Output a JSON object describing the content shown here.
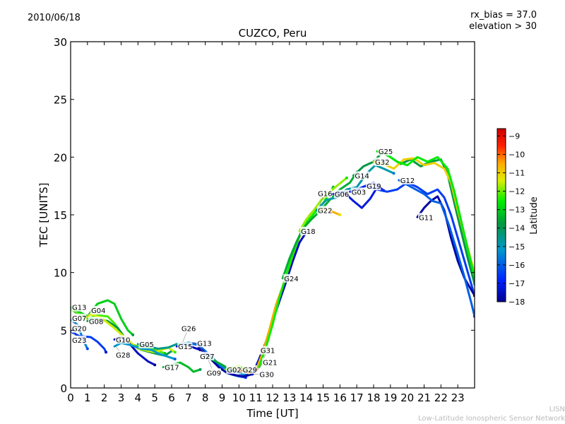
{
  "header": {
    "date": "2010/06/18",
    "rx_bias": "rx_bias = 37.0",
    "elevation": "elevation > 30"
  },
  "footer": {
    "short": "LISN",
    "long": "Low-Latitude Ionospheric Sensor Network"
  },
  "chart_data": {
    "type": "scatter",
    "title": "CUZCO, Peru",
    "xlabel": "Time [UT]",
    "ylabel": "TEC [UNITS]",
    "xlim": [
      0,
      24
    ],
    "ylim": [
      0,
      30
    ],
    "xticks": [
      "0",
      "1",
      "2",
      "3",
      "4",
      "5",
      "6",
      "7",
      "8",
      "9",
      "10",
      "11",
      "12",
      "13",
      "14",
      "15",
      "16",
      "17",
      "18",
      "19",
      "20",
      "21",
      "22",
      "23"
    ],
    "yticks": [
      "0",
      "5",
      "10",
      "15",
      "20",
      "25",
      "30"
    ],
    "colorbar": {
      "label": "Latitude",
      "range": [
        -18,
        -8.6
      ],
      "ticks": [
        "-9",
        "-10",
        "-11",
        "-12",
        "-13",
        "-14",
        "-15",
        "-16",
        "-17",
        "-18"
      ]
    },
    "series": [
      {
        "name": "G13",
        "lat": -13.0,
        "points": [
          [
            0,
            7.0
          ],
          [
            0.5,
            6.6
          ],
          [
            1,
            6.2
          ],
          [
            1.6,
            7.3
          ],
          [
            2.2,
            7.6
          ],
          [
            2.6,
            7.3
          ],
          [
            3.0,
            6.0
          ],
          [
            3.4,
            5.0
          ],
          [
            3.7,
            4.6
          ]
        ]
      },
      {
        "name": "G07",
        "lat": -12.2,
        "points": [
          [
            0,
            6.8
          ],
          [
            0.5,
            6.4
          ],
          [
            1,
            6.0
          ],
          [
            1.6,
            6.3
          ],
          [
            2.2,
            6.2
          ],
          [
            2.6,
            5.6
          ],
          [
            3.0,
            4.8
          ],
          [
            3.4,
            3.9
          ],
          [
            4,
            3.6
          ],
          [
            5,
            3.3
          ],
          [
            5.6,
            3.0
          ]
        ]
      },
      {
        "name": "G20",
        "lat": -15.5,
        "points": [
          [
            0,
            5.9
          ],
          [
            0.4,
            5.5
          ],
          [
            0.8,
            4.0
          ],
          [
            1.0,
            3.4
          ]
        ]
      },
      {
        "name": "G08",
        "lat": -13.8,
        "points": [
          [
            1,
            5.8
          ],
          [
            1.5,
            6.0
          ],
          [
            2.2,
            5.8
          ],
          [
            2.8,
            5.2
          ],
          [
            3.4,
            4.0
          ],
          [
            4.2,
            3.3
          ],
          [
            5,
            3.0
          ],
          [
            5.6,
            2.8
          ],
          [
            6.0,
            3.2
          ]
        ]
      },
      {
        "name": "G04",
        "lat": -11.5,
        "points": [
          [
            0.8,
            6.0
          ],
          [
            1.2,
            6.4
          ],
          [
            1.8,
            6.1
          ],
          [
            2.5,
            5.3
          ],
          [
            3.2,
            4.4
          ],
          [
            4,
            3.4
          ],
          [
            5,
            3.1
          ],
          [
            5.8,
            3.5
          ],
          [
            6.2,
            3.1
          ]
        ]
      },
      {
        "name": "G23",
        "lat": -16.5,
        "points": [
          [
            0,
            4.9
          ],
          [
            0.5,
            4.5
          ],
          [
            1.2,
            4.4
          ],
          [
            1.6,
            4.0
          ],
          [
            2.0,
            3.4
          ],
          [
            2.1,
            3.1
          ]
        ]
      },
      {
        "name": "G10",
        "lat": -17.5,
        "points": [
          [
            2.6,
            4.2
          ],
          [
            3.0,
            4.4
          ],
          [
            3.4,
            4.0
          ],
          [
            4.0,
            3.0
          ],
          [
            4.6,
            2.3
          ],
          [
            5,
            2.0
          ]
        ]
      },
      {
        "name": "G28",
        "lat": -15.2,
        "points": [
          [
            2.6,
            3.6
          ],
          [
            3.0,
            3.9
          ],
          [
            3.6,
            3.7
          ],
          [
            4.2,
            3.4
          ],
          [
            4.8,
            3.3
          ],
          [
            5.2,
            3.0
          ],
          [
            5.8,
            2.7
          ],
          [
            6.2,
            2.5
          ]
        ]
      },
      {
        "name": "G05",
        "lat": -14.5,
        "points": [
          [
            4.0,
            3.8
          ],
          [
            4.6,
            3.6
          ],
          [
            5.2,
            3.4
          ],
          [
            5.8,
            3.5
          ],
          [
            6.3,
            3.8
          ],
          [
            7,
            3.9
          ]
        ]
      },
      {
        "name": "G17",
        "lat": -13.3,
        "points": [
          [
            5.5,
            1.8
          ],
          [
            6,
            2.0
          ],
          [
            6.5,
            2.2
          ],
          [
            7,
            1.8
          ],
          [
            7.3,
            1.4
          ],
          [
            7.7,
            1.6
          ]
        ]
      },
      {
        "name": "G15",
        "lat": -17.5,
        "points": [
          [
            6.3,
            3.6
          ],
          [
            6.8,
            3.8
          ],
          [
            7.3,
            3.5
          ],
          [
            7.7,
            3.3
          ]
        ]
      },
      {
        "name": "G26",
        "lat": -15.5,
        "points": [
          [
            6.5,
            3.7
          ],
          [
            7,
            3.9
          ],
          [
            7.6,
            3.7
          ],
          [
            8,
            3.2
          ],
          [
            8.5,
            2.5
          ],
          [
            9,
            1.8
          ],
          [
            9.5,
            1.5
          ],
          [
            10,
            1.3
          ],
          [
            10.5,
            1.1
          ]
        ]
      },
      {
        "name": "G13b",
        "label": "G13",
        "lat": -16.0,
        "points": [
          [
            7.1,
            3.9
          ],
          [
            7.6,
            3.8
          ],
          [
            8,
            3.1
          ],
          [
            8.5,
            2.3
          ],
          [
            9,
            1.6
          ],
          [
            9.5,
            1.2
          ],
          [
            10,
            1.0
          ],
          [
            10.4,
            0.9
          ]
        ]
      },
      {
        "name": "G27",
        "lat": -17.8,
        "points": [
          [
            7.6,
            3.5
          ],
          [
            8.0,
            3.0
          ],
          [
            8.4,
            2.4
          ],
          [
            8.8,
            1.8
          ],
          [
            9.3,
            1.3
          ],
          [
            9.8,
            1.1
          ],
          [
            10.3,
            1.0
          ],
          [
            10.8,
            1.2
          ]
        ]
      },
      {
        "name": "G09",
        "lat": -13.5,
        "points": [
          [
            8.0,
            2.8
          ],
          [
            8.5,
            2.4
          ],
          [
            9,
            2.0
          ],
          [
            9.5,
            1.6
          ],
          [
            10,
            1.5
          ],
          [
            10.5,
            1.4
          ]
        ]
      },
      {
        "name": "G02",
        "lat": -12.0,
        "points": [
          [
            9.2,
            1.6
          ],
          [
            9.6,
            1.8
          ],
          [
            10,
            1.9
          ],
          [
            10.4,
            1.6
          ],
          [
            10.8,
            1.3
          ]
        ]
      },
      {
        "name": "G29",
        "lat": -10.0,
        "points": [
          [
            9.8,
            1.6
          ],
          [
            10.2,
            1.5
          ],
          [
            10.6,
            1.3
          ]
        ]
      },
      {
        "name": "G30",
        "lat": -17.5,
        "points": [
          [
            10.8,
            1.2
          ],
          [
            11.2,
            2.5
          ],
          [
            11.6,
            4.0
          ],
          [
            12,
            5.8
          ],
          [
            12.4,
            7.5
          ],
          [
            12.8,
            9.2
          ],
          [
            13.2,
            11.0
          ],
          [
            13.6,
            12.6
          ],
          [
            14,
            13.5
          ]
        ]
      },
      {
        "name": "G21",
        "lat": -10.5,
        "points": [
          [
            11.0,
            1.5
          ],
          [
            11.4,
            3.0
          ],
          [
            11.8,
            5.0
          ],
          [
            12.2,
            7.2
          ],
          [
            12.6,
            8.8
          ],
          [
            13,
            10.6
          ],
          [
            13.4,
            12.4
          ],
          [
            13.8,
            13.8
          ],
          [
            14.2,
            15.0
          ],
          [
            14.6,
            15.6
          ]
        ]
      },
      {
        "name": "G31",
        "lat": -12.5,
        "points": [
          [
            11.2,
            1.8
          ],
          [
            11.6,
            3.5
          ],
          [
            12,
            5.5
          ],
          [
            12.4,
            7.8
          ],
          [
            12.8,
            9.7
          ],
          [
            13.2,
            11.6
          ],
          [
            13.6,
            13.2
          ],
          [
            14,
            14.3
          ],
          [
            14.5,
            15.2
          ],
          [
            15,
            16.0
          ],
          [
            15.6,
            17.4
          ]
        ]
      },
      {
        "name": "G24",
        "lat": -13.5,
        "points": [
          [
            12.6,
            9.5
          ],
          [
            13,
            11.2
          ],
          [
            13.4,
            12.6
          ],
          [
            13.8,
            13.8
          ],
          [
            14.3,
            14.6
          ],
          [
            14.8,
            15.3
          ],
          [
            15.4,
            16.3
          ],
          [
            16,
            17.2
          ],
          [
            16.6,
            17.8
          ],
          [
            17,
            18.7
          ]
        ]
      },
      {
        "name": "G18",
        "lat": -11.8,
        "points": [
          [
            13.6,
            13.6
          ],
          [
            14,
            14.6
          ],
          [
            14.4,
            15.3
          ],
          [
            14.9,
            16.3
          ],
          [
            15.4,
            17.0
          ],
          [
            15.9,
            17.6
          ],
          [
            16.4,
            18.2
          ]
        ]
      },
      {
        "name": "G22",
        "lat": -10.5,
        "points": [
          [
            14.6,
            15.4
          ],
          [
            15,
            15.5
          ],
          [
            15.5,
            15.3
          ],
          [
            16,
            15.0
          ]
        ]
      },
      {
        "name": "G16",
        "lat": -14.8,
        "points": [
          [
            14.6,
            15.4
          ],
          [
            15.2,
            16.3
          ],
          [
            15.8,
            16.5
          ],
          [
            16.4,
            17.2
          ],
          [
            17,
            17.4
          ],
          [
            17.6,
            18.6
          ],
          [
            18.1,
            19.3
          ],
          [
            18.6,
            19.0
          ],
          [
            19.2,
            18.6
          ]
        ]
      },
      {
        "name": "G06",
        "lat": -17.2,
        "points": [
          [
            15.6,
            16.8
          ],
          [
            16.2,
            17.0
          ],
          [
            16.8,
            16.2
          ],
          [
            17.3,
            15.6
          ],
          [
            17.8,
            16.4
          ],
          [
            18.3,
            17.6
          ]
        ]
      },
      {
        "name": "G03",
        "lat": -17.0,
        "points": [
          [
            16.6,
            17.0
          ],
          [
            17,
            17.2
          ],
          [
            17.5,
            17.5
          ],
          [
            18,
            17.8
          ],
          [
            18.6,
            17.1
          ]
        ]
      },
      {
        "name": "G19",
        "lat": -16.5,
        "points": [
          [
            17.5,
            17.5
          ],
          [
            18.2,
            17.2
          ],
          [
            18.8,
            17.0
          ],
          [
            19.4,
            17.2
          ],
          [
            20,
            17.8
          ],
          [
            20.6,
            17.4
          ],
          [
            21.2,
            16.8
          ],
          [
            21.8,
            17.2
          ],
          [
            22.2,
            16.5
          ],
          [
            22.6,
            15.0
          ],
          [
            23,
            13.0
          ],
          [
            23.4,
            11.0
          ],
          [
            24,
            8.0
          ]
        ]
      },
      {
        "name": "G14",
        "lat": -13.8,
        "points": [
          [
            16.8,
            18.4
          ],
          [
            17.4,
            19.2
          ],
          [
            18,
            19.6
          ],
          [
            18.5,
            20.4
          ],
          [
            19,
            20.0
          ],
          [
            19.6,
            19.4
          ],
          [
            20.2,
            19.8
          ],
          [
            20.8,
            19.2
          ],
          [
            21.4,
            19.6
          ],
          [
            22,
            19.8
          ],
          [
            22.4,
            18.5
          ],
          [
            22.8,
            16.0
          ],
          [
            23.2,
            13.6
          ],
          [
            23.6,
            11.2
          ],
          [
            24,
            9.0
          ]
        ]
      },
      {
        "name": "G32",
        "lat": -11.0,
        "points": [
          [
            18,
            19.6
          ],
          [
            18.6,
            19.4
          ],
          [
            19.2,
            19.0
          ],
          [
            19.8,
            19.8
          ],
          [
            20.4,
            19.9
          ],
          [
            21,
            19.3
          ],
          [
            21.6,
            19.5
          ],
          [
            22.2,
            19.0
          ],
          [
            22.6,
            17.8
          ],
          [
            23,
            15.4
          ],
          [
            23.4,
            13.2
          ],
          [
            23.8,
            11.0
          ],
          [
            24,
            10.0
          ]
        ]
      },
      {
        "name": "G25",
        "lat": -12.6,
        "points": [
          [
            18.2,
            20.5
          ],
          [
            18.8,
            20.2
          ],
          [
            19.4,
            19.6
          ],
          [
            20,
            19.3
          ],
          [
            20.6,
            20.0
          ],
          [
            21.2,
            19.6
          ],
          [
            21.8,
            20.0
          ],
          [
            22.4,
            19.0
          ],
          [
            22.8,
            17.0
          ],
          [
            23.2,
            14.5
          ],
          [
            23.6,
            12.0
          ],
          [
            24,
            9.6
          ]
        ]
      },
      {
        "name": "G11",
        "lat": -17.8,
        "points": [
          [
            20.6,
            14.8
          ],
          [
            21,
            15.6
          ],
          [
            21.4,
            16.2
          ],
          [
            21.8,
            16.6
          ],
          [
            22.2,
            15.4
          ],
          [
            22.6,
            13.0
          ],
          [
            23,
            11.0
          ],
          [
            23.4,
            9.5
          ],
          [
            24,
            8.0
          ]
        ]
      },
      {
        "name": "G12",
        "lat": -16.0,
        "points": [
          [
            19.5,
            18.0
          ],
          [
            20,
            17.6
          ],
          [
            20.5,
            17.2
          ],
          [
            21,
            16.8
          ],
          [
            21.5,
            16.2
          ],
          [
            22,
            16.0
          ],
          [
            22.5,
            14.0
          ],
          [
            23,
            11.6
          ],
          [
            23.4,
            9.6
          ],
          [
            23.8,
            7.4
          ],
          [
            24,
            6.2
          ]
        ]
      }
    ]
  }
}
